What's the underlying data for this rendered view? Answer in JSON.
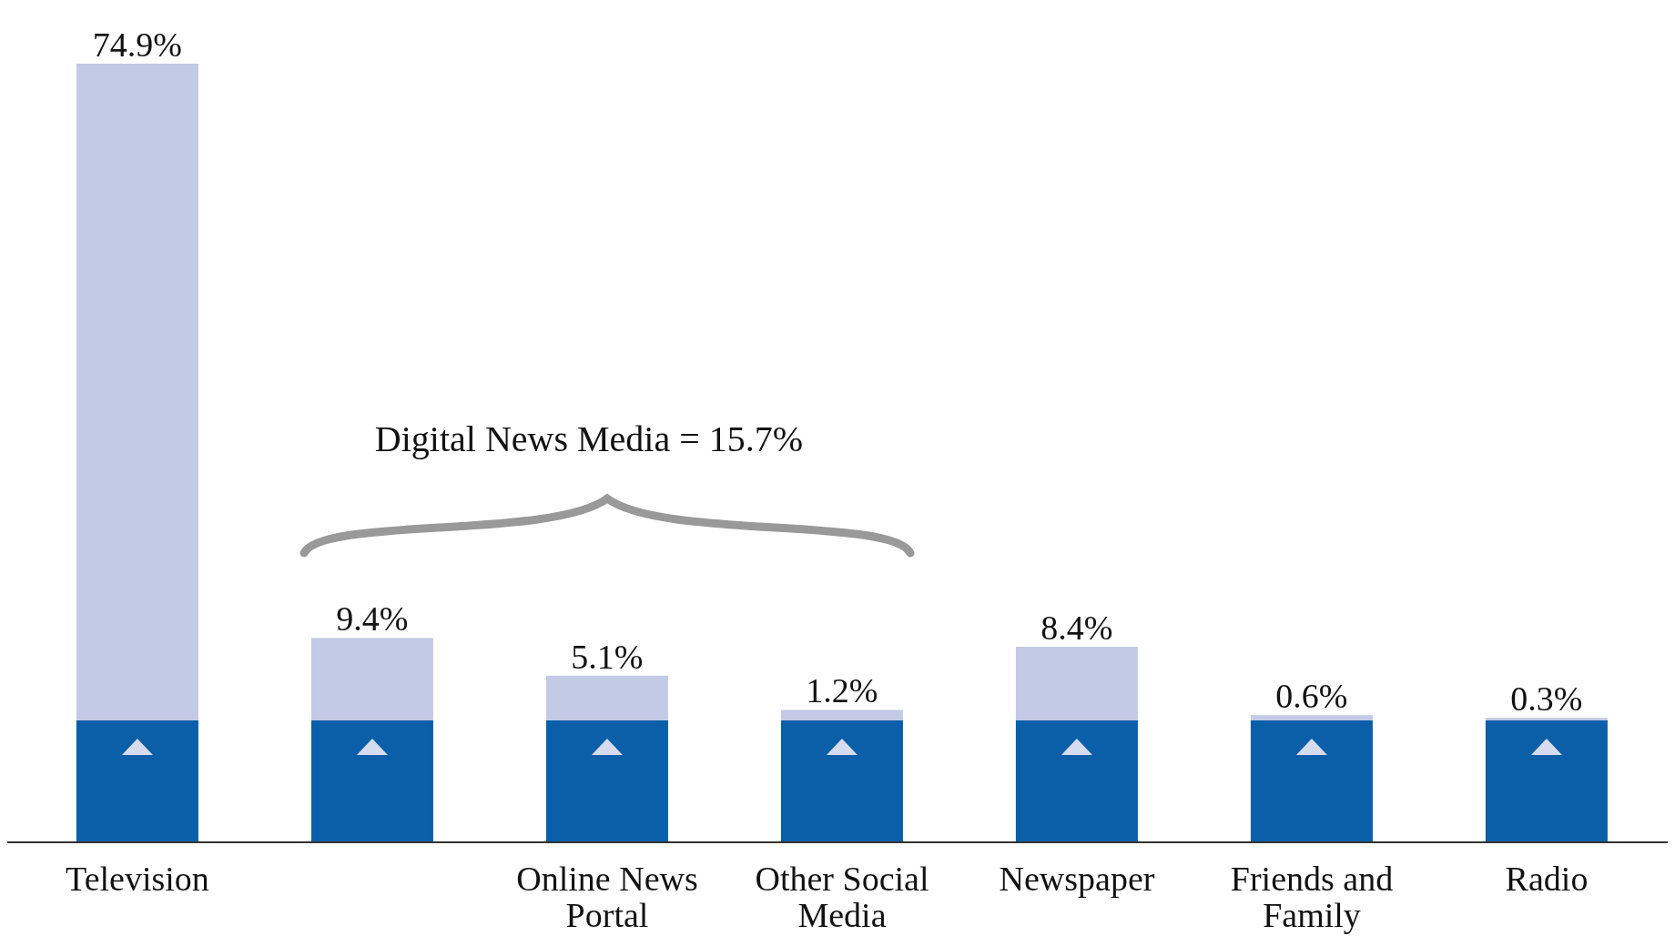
{
  "chart_data": {
    "type": "bar",
    "categories": [
      "Television",
      null,
      "Online News Portal",
      "Other Social Media",
      "Newspaper",
      "Friends and Family",
      "Radio"
    ],
    "values": [
      74.9,
      9.4,
      5.1,
      1.2,
      8.4,
      0.6,
      0.3
    ],
    "value_labels": [
      "74.9%",
      "9.4%",
      "5.1%",
      "1.2%",
      "8.4%",
      "0.6%",
      "0.3%"
    ],
    "color": "#c3cae6",
    "annotations": [
      "Digital News Media = 15.7%"
    ]
  }
}
